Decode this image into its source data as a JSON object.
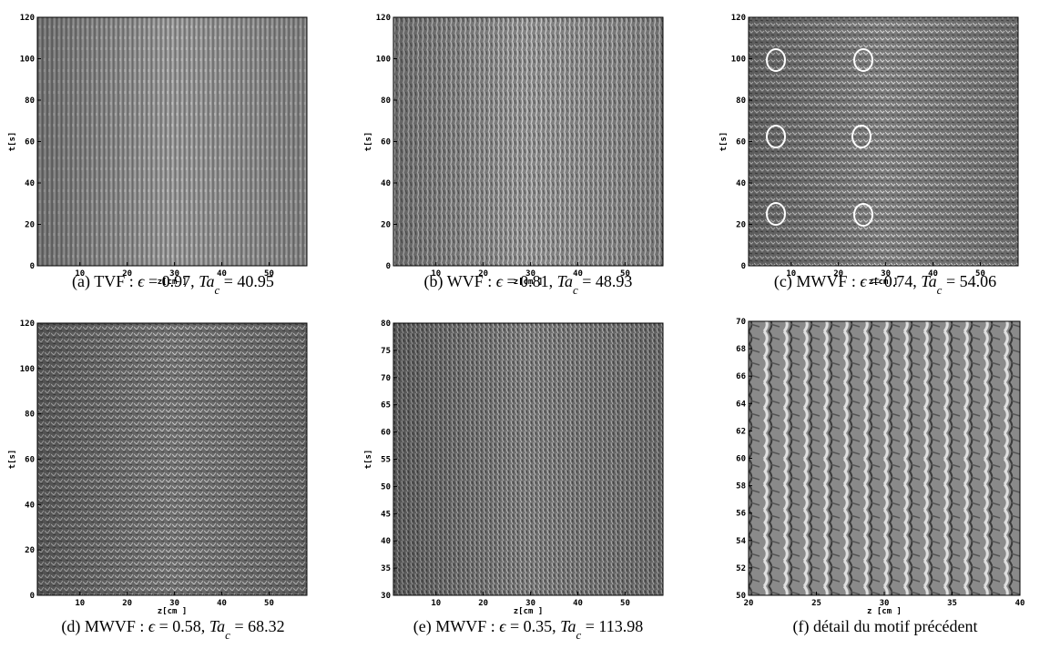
{
  "chart_data": [
    {
      "type": "image",
      "xlabel": "z[cm ]",
      "ylabel": "t[s]",
      "xlim": [
        1,
        58
      ],
      "ylim": [
        0,
        120
      ],
      "xticks": [
        10,
        20,
        30,
        40,
        50
      ],
      "yticks": [
        0,
        20,
        40,
        60,
        80,
        100,
        120
      ],
      "caption": [
        "(a) TVF : ",
        "ϵ",
        " = 0.97, ",
        "Ta",
        "c",
        " = 40.95"
      ]
    },
    {
      "type": "image",
      "xlabel": "z[cm ]",
      "ylabel": "t[s]",
      "xlim": [
        1,
        58
      ],
      "ylim": [
        0,
        120
      ],
      "xticks": [
        10,
        20,
        30,
        40,
        50
      ],
      "yticks": [
        0,
        20,
        40,
        60,
        80,
        100,
        120
      ],
      "caption": [
        "(b) WVF : ",
        "ϵ",
        " = 0.81, ",
        "Ta",
        "c",
        " = 48.93"
      ]
    },
    {
      "type": "image",
      "xlabel": "z[cm ]",
      "ylabel": "t[s]",
      "xlim": [
        1,
        58
      ],
      "ylim": [
        0,
        120
      ],
      "xticks": [
        10,
        20,
        30,
        40,
        50
      ],
      "yticks": [
        0,
        20,
        40,
        60,
        80,
        100,
        120
      ],
      "caption": [
        "(c) MWVF : ",
        "ϵ",
        " = 0.74, ",
        "Ta",
        "c",
        " = 54.06"
      ]
    },
    {
      "type": "image",
      "xlabel": "z[cm ]",
      "ylabel": "t[s]",
      "xlim": [
        1,
        58
      ],
      "ylim": [
        0,
        120
      ],
      "xticks": [
        10,
        20,
        30,
        40,
        50
      ],
      "yticks": [
        0,
        20,
        40,
        60,
        80,
        100,
        120
      ],
      "caption": [
        "(d) MWVF : ",
        "ϵ",
        " = 0.58, ",
        "Ta",
        "c",
        " = 68.32"
      ]
    },
    {
      "type": "image",
      "xlabel": "z[cm ]",
      "ylabel": "t[s]",
      "xlim": [
        1,
        58
      ],
      "ylim": [
        30,
        80
      ],
      "xticks": [
        10,
        20,
        30,
        40,
        50
      ],
      "yticks": [
        30,
        35,
        40,
        45,
        50,
        55,
        60,
        65,
        70,
        75,
        80
      ],
      "caption": [
        "(e) MWVF : ",
        "ϵ",
        " = 0.35, ",
        "Ta",
        "c",
        " = 113.98"
      ]
    },
    {
      "type": "image",
      "xlabel": "z [cm ]",
      "xlim": [
        20,
        40
      ],
      "ylim": [
        50,
        70
      ],
      "xticks": [
        20,
        25,
        30,
        35,
        40
      ],
      "yticks": [
        50,
        52,
        54,
        56,
        58,
        60,
        62,
        64,
        66,
        68,
        70
      ],
      "caption": [
        "(f) détail du motif précédent"
      ]
    }
  ]
}
